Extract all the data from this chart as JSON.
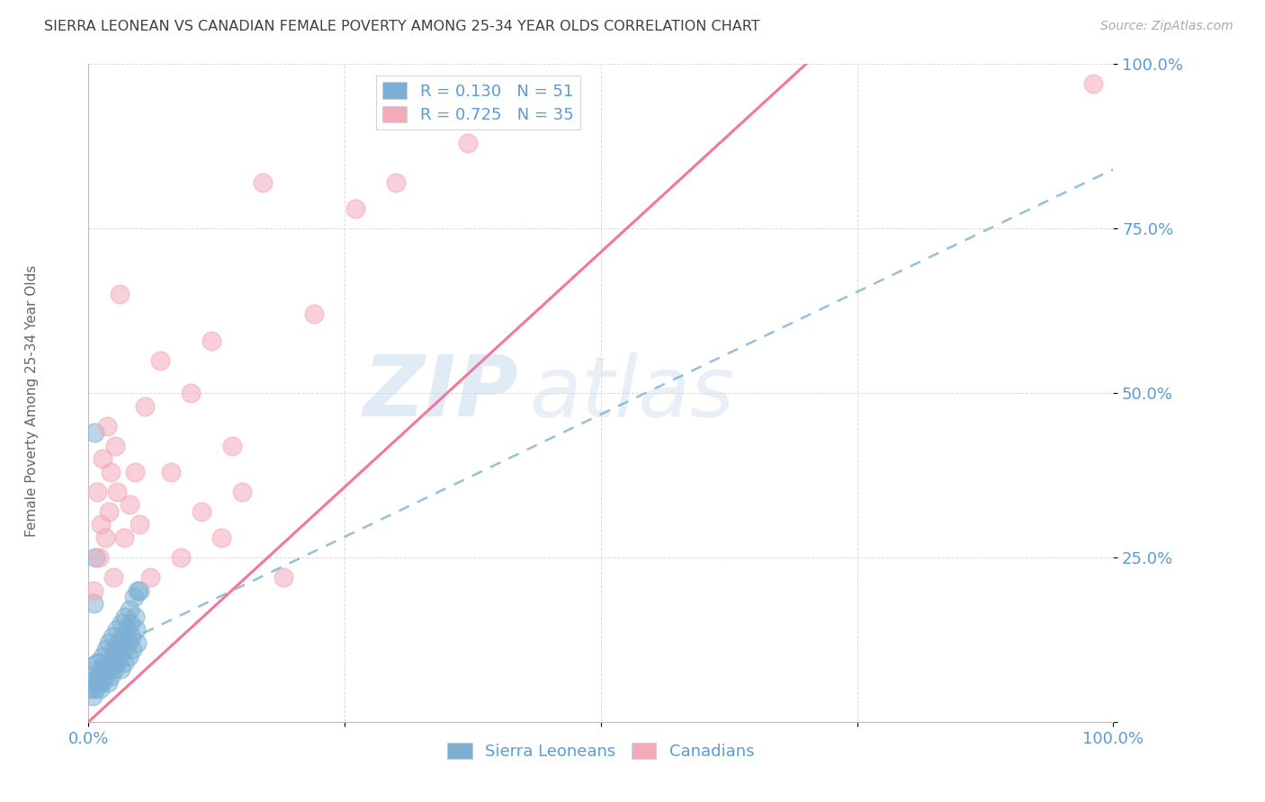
{
  "title": "SIERRA LEONEAN VS CANADIAN FEMALE POVERTY AMONG 25-34 YEAR OLDS CORRELATION CHART",
  "source": "Source: ZipAtlas.com",
  "ylabel": "Female Poverty Among 25-34 Year Olds",
  "watermark_zip": "ZIP",
  "watermark_atlas": "atlas",
  "blue_R": 0.13,
  "blue_N": 51,
  "pink_R": 0.725,
  "pink_N": 35,
  "legend_labels": [
    "Sierra Leoneans",
    "Canadians"
  ],
  "blue_color": "#7BAFD4",
  "pink_color": "#F4AABB",
  "blue_line_color": "#7BAFD4",
  "pink_line_color": "#F4779A",
  "axis_label_color": "#5B9BD5",
  "title_color": "#404040",
  "grid_color": "#CCCCCC",
  "background_color": "#FFFFFF",
  "xlim": [
    0,
    1
  ],
  "ylim": [
    0,
    1
  ],
  "xticks": [
    0,
    0.25,
    0.5,
    0.75,
    1.0
  ],
  "yticks": [
    0,
    0.25,
    0.5,
    0.75,
    1.0
  ],
  "xticklabels": [
    "0.0%",
    "",
    "",
    "",
    "100.0%"
  ],
  "yticklabels": [
    "",
    "25.0%",
    "50.0%",
    "75.0%",
    "100.0%"
  ],
  "blue_x": [
    0.002,
    0.003,
    0.004,
    0.005,
    0.006,
    0.007,
    0.008,
    0.009,
    0.01,
    0.011,
    0.012,
    0.013,
    0.014,
    0.015,
    0.016,
    0.017,
    0.018,
    0.019,
    0.02,
    0.021,
    0.022,
    0.023,
    0.024,
    0.025,
    0.026,
    0.027,
    0.028,
    0.029,
    0.03,
    0.031,
    0.032,
    0.033,
    0.034,
    0.035,
    0.036,
    0.037,
    0.038,
    0.039,
    0.04,
    0.041,
    0.042,
    0.043,
    0.044,
    0.045,
    0.046,
    0.047,
    0.048,
    0.005,
    0.006,
    0.007,
    0.05
  ],
  "blue_y": [
    0.05,
    0.07,
    0.04,
    0.06,
    0.08,
    0.05,
    0.09,
    0.06,
    0.07,
    0.05,
    0.08,
    0.06,
    0.1,
    0.07,
    0.09,
    0.11,
    0.08,
    0.06,
    0.12,
    0.09,
    0.07,
    0.13,
    0.1,
    0.08,
    0.11,
    0.09,
    0.14,
    0.12,
    0.1,
    0.08,
    0.15,
    0.13,
    0.11,
    0.09,
    0.16,
    0.14,
    0.12,
    0.1,
    0.17,
    0.15,
    0.13,
    0.11,
    0.19,
    0.16,
    0.14,
    0.12,
    0.2,
    0.18,
    0.44,
    0.25,
    0.2
  ],
  "pink_x": [
    0.005,
    0.008,
    0.01,
    0.012,
    0.014,
    0.016,
    0.018,
    0.02,
    0.022,
    0.024,
    0.026,
    0.028,
    0.03,
    0.035,
    0.04,
    0.045,
    0.05,
    0.055,
    0.06,
    0.07,
    0.08,
    0.09,
    0.1,
    0.11,
    0.12,
    0.13,
    0.14,
    0.15,
    0.17,
    0.19,
    0.22,
    0.26,
    0.3,
    0.37,
    0.98
  ],
  "pink_y": [
    0.2,
    0.35,
    0.25,
    0.3,
    0.4,
    0.28,
    0.45,
    0.32,
    0.38,
    0.22,
    0.42,
    0.35,
    0.65,
    0.28,
    0.33,
    0.38,
    0.3,
    0.48,
    0.22,
    0.55,
    0.38,
    0.25,
    0.5,
    0.32,
    0.58,
    0.28,
    0.42,
    0.35,
    0.82,
    0.22,
    0.62,
    0.78,
    0.82,
    0.88,
    0.97
  ],
  "blue_line_x0": 0.0,
  "blue_line_y0": 0.095,
  "blue_line_x1": 1.0,
  "blue_line_y1": 0.84,
  "pink_line_x0": 0.0,
  "pink_line_y0": 0.0,
  "pink_line_x1": 0.7,
  "pink_line_y1": 1.0
}
